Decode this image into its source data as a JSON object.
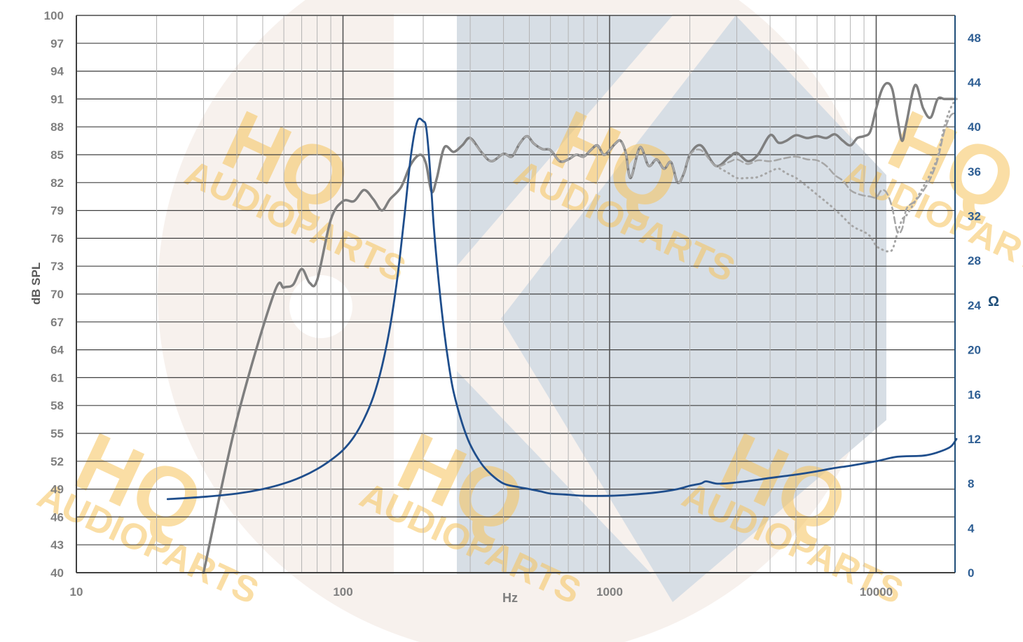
{
  "chart_data": {
    "type": "line",
    "x_scale": "log",
    "xlim": [
      10,
      20000
    ],
    "xlabel": "Hz",
    "x_ticks": [
      "10",
      "100",
      "1000",
      "10000"
    ],
    "ylabel_left": "dB SPL",
    "ylim_left": [
      40,
      100
    ],
    "y_ticks_left": [
      "100",
      "97",
      "94",
      "91",
      "88",
      "85",
      "82",
      "79",
      "76",
      "73",
      "70",
      "67",
      "64",
      "61",
      "58",
      "55",
      "52",
      "49",
      "46",
      "43",
      "40"
    ],
    "ylabel_right": "Ω",
    "ylim_right": [
      0,
      50
    ],
    "y_ticks_right": [
      "48",
      "44",
      "40",
      "36",
      "32",
      "28",
      "24",
      "20",
      "16",
      "12",
      "8",
      "4",
      "0"
    ],
    "grid": true,
    "watermark": {
      "primary": "HQ",
      "secondary": "AUDIOPARTS"
    },
    "series": [
      {
        "axis": "left",
        "color": "#7f7f7f",
        "style": "solid",
        "width": 3.5,
        "x": [
          30,
          40,
          55,
          60,
          65,
          70,
          75,
          80,
          90,
          100,
          110,
          120,
          130,
          140,
          150,
          165,
          180,
          195,
          205,
          215,
          225,
          240,
          260,
          280,
          300,
          330,
          360,
          400,
          430,
          460,
          490,
          520,
          560,
          600,
          650,
          700,
          750,
          800,
          850,
          900,
          950,
          1000,
          1050,
          1100,
          1150,
          1200,
          1300,
          1400,
          1500,
          1600,
          1700,
          1800,
          1900,
          2000,
          2200,
          2500,
          2800,
          3000,
          3300,
          3600,
          4000,
          4300,
          4600,
          5000,
          5500,
          6000,
          6500,
          7000,
          7500,
          8000,
          8500,
          9000,
          9500,
          10000,
          10500,
          11000,
          11500,
          12000,
          12500,
          13000,
          14000,
          15000,
          16000,
          17000,
          18000,
          19000,
          20000
        ],
        "y": [
          40,
          56.5,
          70,
          70.7,
          71,
          72.7,
          71.2,
          71.5,
          78,
          80,
          80,
          81.2,
          80.2,
          79,
          80.2,
          81.5,
          84,
          85,
          84,
          81,
          82.5,
          85.8,
          85.3,
          86,
          86.8,
          85.3,
          84.3,
          85.1,
          84.8,
          86.2,
          87,
          86.2,
          85.6,
          85.5,
          84.3,
          84.5,
          85,
          84.8,
          85.5,
          86,
          85,
          85.5,
          86.2,
          86.5,
          85.2,
          82.5,
          85.8,
          83.8,
          84.5,
          83.5,
          84.2,
          82,
          83,
          85,
          86,
          83.8,
          84.7,
          85.2,
          84.3,
          85,
          87.1,
          86.3,
          86.5,
          87.1,
          86.8,
          87,
          86.8,
          87.2,
          86.5,
          86,
          86.8,
          87,
          87.5,
          90,
          92,
          92.7,
          92,
          89,
          86.5,
          88.5,
          92.5,
          90,
          89,
          91,
          91,
          91,
          91
        ]
      },
      {
        "axis": "left",
        "color": "#a6a6a6",
        "style": "dashed",
        "width": 2.5,
        "x": [
          300,
          330,
          360,
          400,
          430,
          460,
          490,
          520,
          560,
          600,
          650,
          700,
          750,
          800,
          850,
          900,
          950,
          1000,
          1050,
          1100,
          1150,
          1200,
          1300,
          1400,
          1500,
          1600,
          1700,
          1800,
          1900,
          2000,
          2200,
          2500,
          2800,
          3000,
          3300,
          3600,
          4000,
          4500,
          5000,
          5500,
          6000,
          6500,
          7000,
          7500,
          8000,
          8500,
          9000,
          9500,
          10000,
          10500,
          11000,
          11500,
          12000,
          12500,
          13000,
          14000,
          15000,
          16000,
          17000,
          18000,
          19000,
          20000
        ],
        "y": [
          86.8,
          85.3,
          84.3,
          85.1,
          84.8,
          86.2,
          87,
          86.2,
          85.6,
          85.5,
          84.3,
          84.5,
          85,
          84.8,
          85.5,
          86,
          85,
          85.5,
          86.2,
          86.5,
          85.2,
          82.5,
          85.8,
          83.8,
          84.5,
          83.5,
          84.2,
          82,
          83,
          85,
          85.5,
          83.8,
          84.2,
          84.5,
          84,
          84.4,
          84.3,
          84.6,
          84.8,
          84.5,
          84.4,
          83.8,
          82.8,
          82.2,
          81.2,
          80.8,
          80.6,
          80.5,
          80.4,
          81.2,
          80.8,
          79.2,
          76.7,
          77,
          79.2,
          80,
          81.1,
          82.5,
          84.5,
          87.5,
          89.2,
          89.5
        ]
      },
      {
        "axis": "left",
        "color": "#a6a6a6",
        "style": "dotted",
        "width": 3,
        "x": [
          2500,
          2800,
          3000,
          3300,
          3600,
          4000,
          4300,
          4600,
          5000,
          5500,
          6000,
          6500,
          7000,
          7500,
          8000,
          8500,
          9000,
          9500,
          10000,
          10500,
          11000,
          11500,
          12000,
          12500,
          13000,
          14000,
          15000,
          16000,
          17000,
          18000,
          19000,
          20000
        ],
        "y": [
          83.8,
          83,
          82.5,
          82.5,
          82.6,
          83.2,
          83.5,
          83,
          82.5,
          81.6,
          80.7,
          79.9,
          79.1,
          78.3,
          77.5,
          77,
          76.7,
          76.2,
          75.2,
          74.8,
          74.6,
          74.8,
          76.5,
          78,
          78.5,
          80,
          81.5,
          83,
          84.8,
          88,
          90,
          91
        ]
      },
      {
        "axis": "right",
        "color": "#1f4e8c",
        "style": "solid",
        "width": 2.8,
        "x": [
          22,
          30,
          40,
          50,
          60,
          70,
          80,
          90,
          100,
          110,
          120,
          130,
          140,
          150,
          160,
          170,
          180,
          190,
          200,
          205,
          210,
          215,
          220,
          230,
          240,
          250,
          260,
          280,
          300,
          330,
          360,
          400,
          450,
          500,
          550,
          600,
          700,
          800,
          1000,
          1200,
          1500,
          1800,
          2000,
          2200,
          2300,
          2500,
          2700,
          3000,
          3500,
          4000,
          5000,
          6000,
          7000,
          8000,
          10000,
          12000,
          15000,
          17000,
          19000,
          20000
        ],
        "y": [
          6.6,
          6.8,
          7.1,
          7.5,
          8.0,
          8.6,
          9.3,
          10.1,
          11.0,
          12.2,
          13.8,
          15.8,
          18.5,
          22.0,
          26.5,
          32.0,
          37.5,
          40.5,
          40.5,
          40.0,
          37.5,
          34.0,
          30.5,
          25.5,
          21.5,
          18.5,
          16.2,
          13.4,
          11.5,
          9.8,
          8.8,
          8.0,
          7.7,
          7.5,
          7.3,
          7.1,
          7.0,
          6.9,
          6.9,
          7.0,
          7.2,
          7.5,
          7.8,
          8.0,
          8.2,
          8.0,
          8.0,
          8.1,
          8.3,
          8.5,
          8.8,
          9.1,
          9.4,
          9.6,
          10.0,
          10.4,
          10.5,
          10.8,
          11.3,
          12.0
        ]
      }
    ]
  }
}
